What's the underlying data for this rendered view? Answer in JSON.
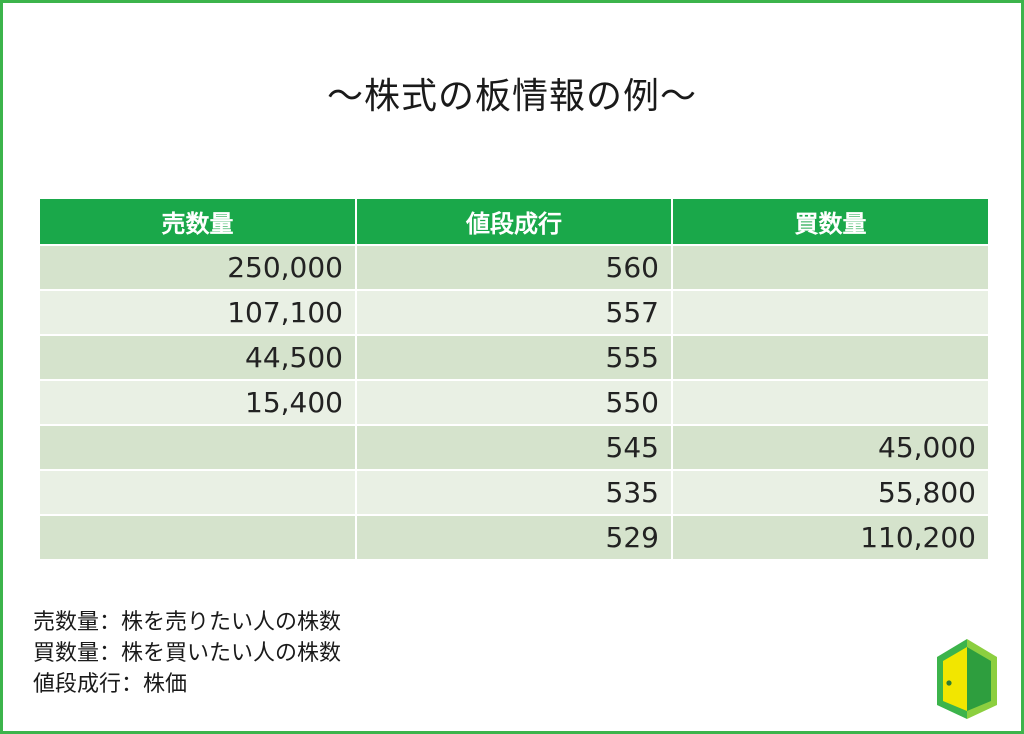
{
  "title": "〜株式の板情報の例〜",
  "table": {
    "headers": [
      "売数量",
      "値段成行",
      "買数量"
    ],
    "rows": [
      {
        "sell": "250,000",
        "price": "560",
        "buy": ""
      },
      {
        "sell": "107,100",
        "price": "557",
        "buy": ""
      },
      {
        "sell": "44,500",
        "price": "555",
        "buy": ""
      },
      {
        "sell": "15,400",
        "price": "550",
        "buy": ""
      },
      {
        "sell": "",
        "price": "545",
        "buy": "45,000"
      },
      {
        "sell": "",
        "price": "535",
        "buy": "55,800"
      },
      {
        "sell": "",
        "price": "529",
        "buy": "110,200"
      }
    ]
  },
  "notes": [
    "売数量：株を売りたい人の株数",
    "買数量：株を買いたい人の株数",
    "値段成行：株価"
  ],
  "colors": {
    "frame": "#3cb44b",
    "header": "#1aa84a",
    "row_dark": "#d5e3cc",
    "row_light": "#e9f0e4"
  },
  "logo": {
    "icon": "door-logo-icon"
  }
}
